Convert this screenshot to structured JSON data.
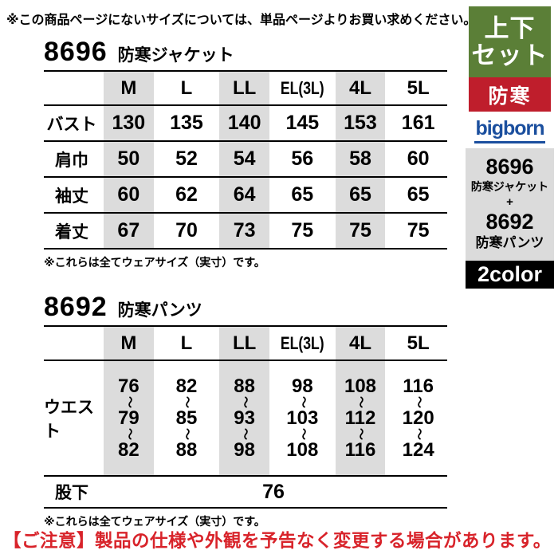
{
  "page": {
    "top_note": "※この商品ページにないサイズについては、単品ページよりお買い求めください。",
    "bottom_notice": "【ご注意】製品の仕様や外観を予告なく変更する場合があります。"
  },
  "colors": {
    "set_badge_green": "#5b7f37",
    "warm_badge_red": "#bf1e2c",
    "brand_blue": "#1b4f9e",
    "product_box_gray": "#dbdbdb",
    "column_stripe_gray": "#dcdcdc",
    "color_badge_black": "#000000",
    "notice_red": "#d8232a"
  },
  "sections": [
    {
      "code": "8696",
      "name": "防寒ジャケット",
      "columns": [
        "M",
        "L",
        "LL",
        "EL(3L)",
        "4L",
        "5L"
      ],
      "rows": [
        {
          "label": "バスト",
          "values": [
            "130",
            "135",
            "140",
            "145",
            "153",
            "161"
          ]
        },
        {
          "label": "肩巾",
          "values": [
            "50",
            "52",
            "54",
            "56",
            "58",
            "60"
          ]
        },
        {
          "label": "袖丈",
          "values": [
            "60",
            "62",
            "64",
            "65",
            "65",
            "65"
          ]
        },
        {
          "label": "着丈",
          "values": [
            "67",
            "70",
            "73",
            "75",
            "75",
            "75"
          ]
        }
      ],
      "note": "※これらは全てウェアサイズ（実寸）です。"
    },
    {
      "code": "8692",
      "name": "防寒パンツ",
      "columns": [
        "M",
        "L",
        "LL",
        "EL(3L)",
        "4L",
        "5L"
      ],
      "waist_row": {
        "label": "ウエスト",
        "separator": "〜",
        "values": [
          [
            "76",
            "79",
            "82"
          ],
          [
            "82",
            "85",
            "88"
          ],
          [
            "88",
            "93",
            "98"
          ],
          [
            "98",
            "103",
            "108"
          ],
          [
            "108",
            "112",
            "116"
          ],
          [
            "116",
            "120",
            "124"
          ]
        ]
      },
      "inseam_row": {
        "label": "股下",
        "value": "76"
      },
      "note": "※これらは全てウェアサイズ（実寸）です。"
    }
  ],
  "sidebar": {
    "set_badge": {
      "line1": "上下",
      "line2": "セット"
    },
    "warm_badge": "防寒",
    "brand": "bigborn",
    "product_box": {
      "code1": "8696",
      "name1": "防寒ジャケット",
      "plus": "+",
      "code2": "8692",
      "name2": "防寒パンツ"
    },
    "color_badge": "2color"
  }
}
